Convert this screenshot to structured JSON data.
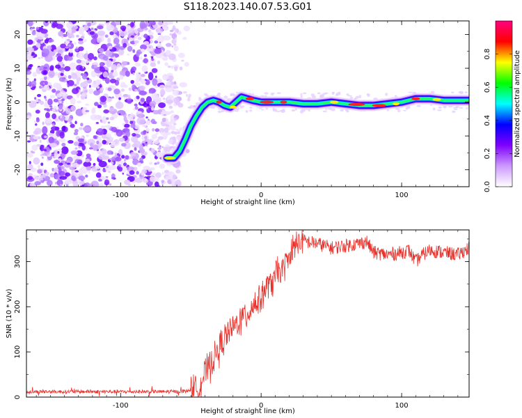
{
  "figure": {
    "title": "S118.2023.140.07.53.G01"
  },
  "chart_data": [
    {
      "type": "heatmap",
      "xlabel": "Height of straight line (km)",
      "ylabel": "Frequency (Hz)",
      "xlim": [
        -167,
        148
      ],
      "ylim": [
        -25,
        24
      ],
      "xticks": [
        -100,
        0,
        100
      ],
      "yticks": [
        -20,
        -10,
        0,
        10,
        20
      ],
      "grid": false,
      "colorbar": {
        "label": "Normalized spectral amplitude",
        "range": [
          0,
          1
        ],
        "ticks": [
          0.0,
          0.2,
          0.4,
          0.6,
          0.8
        ],
        "colormap": [
          "#ffffff",
          "#cc99ff",
          "#8000ff",
          "#0000ff",
          "#00ffff",
          "#00ff00",
          "#ffff00",
          "#ff0000",
          "#ff0080"
        ]
      },
      "ridge": {
        "height": [
          -67,
          -62,
          -58,
          -54,
          -50,
          -46,
          -42,
          -38,
          -34,
          -30,
          -26,
          -22,
          -18,
          -14,
          -10,
          -6,
          0,
          10,
          20,
          30,
          40,
          50,
          60,
          70,
          80,
          90,
          100,
          110,
          120,
          130,
          140,
          148
        ],
        "frequency": [
          -16.5,
          -16.5,
          -14.5,
          -11,
          -7,
          -4,
          -1.5,
          0,
          0.5,
          0,
          -1,
          -1.5,
          0,
          1.5,
          1,
          0.5,
          0,
          0,
          0,
          -0.5,
          -0.5,
          0,
          -0.5,
          -1,
          -1,
          -0.5,
          0,
          1,
          1,
          0.5,
          0.5,
          0.5
        ]
      },
      "noise_region_height": [
        -167,
        -58
      ]
    },
    {
      "type": "line",
      "xlabel": "Height of straight line (km)",
      "ylabel": "SNR (10 * v/v)",
      "xlim": [
        -167,
        148
      ],
      "ylim": [
        0,
        370
      ],
      "xticks": [
        -100,
        0,
        100
      ],
      "yticks": [
        0,
        100,
        200,
        300
      ],
      "grid": false,
      "series": [
        {
          "color": "#e8302a",
          "x": [
            -167,
            -140,
            -110,
            -80,
            -60,
            -52,
            -46,
            -42,
            -38,
            -34,
            -30,
            -26,
            -22,
            -18,
            -14,
            -10,
            -6,
            -2,
            2,
            6,
            10,
            14,
            18,
            22,
            26,
            30,
            40,
            50,
            60,
            70,
            75,
            80,
            90,
            100,
            105,
            110,
            115,
            120,
            130,
            140,
            148
          ],
          "y": [
            12,
            12,
            12,
            12,
            12,
            14,
            20,
            40,
            60,
            85,
            105,
            130,
            145,
            160,
            175,
            185,
            200,
            215,
            235,
            250,
            265,
            280,
            295,
            320,
            345,
            345,
            340,
            330,
            335,
            340,
            345,
            320,
            315,
            320,
            325,
            300,
            315,
            325,
            320,
            315,
            330
          ],
          "noise_amplitude": 28
        }
      ]
    }
  ]
}
